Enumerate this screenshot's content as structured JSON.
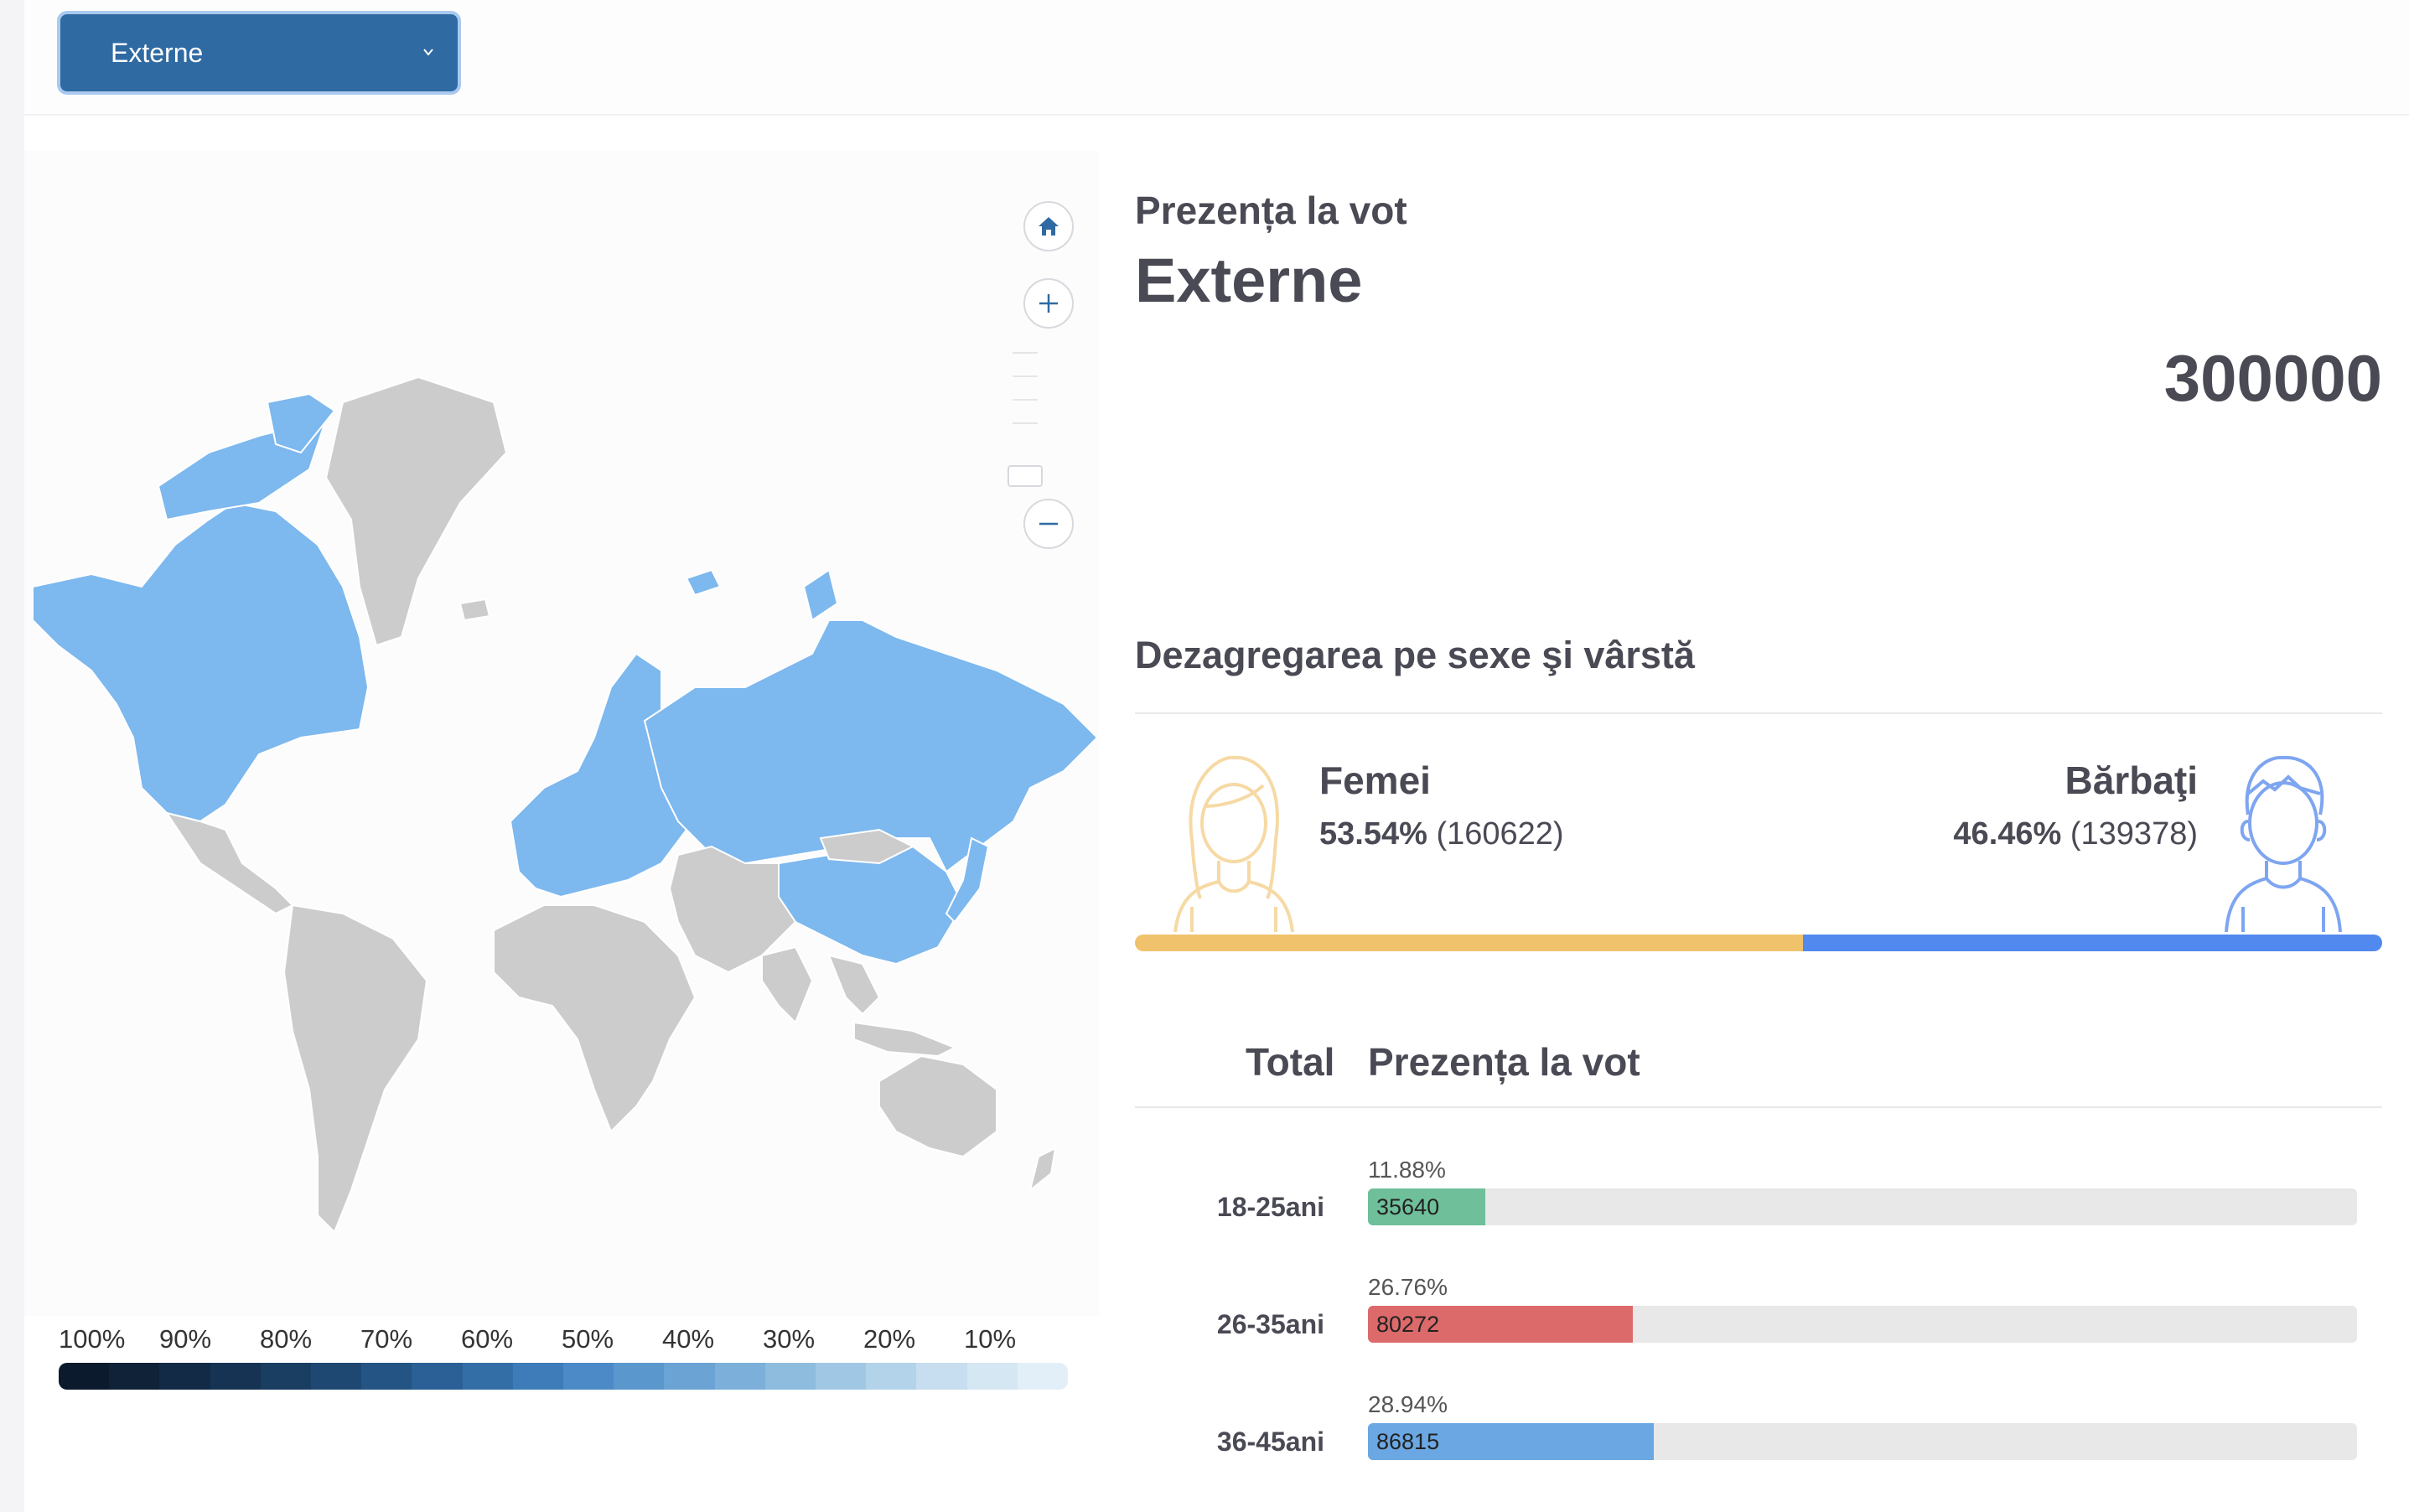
{
  "select": {
    "value": "Externe",
    "icon": "chevron-down-icon"
  },
  "map": {
    "controls": [
      "home-icon",
      "zoom-in-icon",
      "zoom-out-icon"
    ],
    "legend": {
      "labels": [
        "100%",
        "90%",
        "80%",
        "70%",
        "60%",
        "50%",
        "40%",
        "30%",
        "20%",
        "10%"
      ],
      "colors": [
        "#0b1a2c",
        "#0f2238",
        "#122a45",
        "#163353",
        "#1a3d62",
        "#1e4872",
        "#235483",
        "#2a6095",
        "#336ea7",
        "#3d7cb9",
        "#4b8ac6",
        "#5a97cd",
        "#6aa3d4",
        "#7cb0da",
        "#8ebcdf",
        "#a0c8e5",
        "#b3d3ea",
        "#c6deef",
        "#d6e7f4",
        "#e3eff8"
      ],
      "highlight_color": "#7db8ee",
      "neutral_color": "#cccccc"
    }
  },
  "turnout": {
    "label": "Prezența la vot",
    "region": "Externe",
    "total": "300000"
  },
  "gender": {
    "title": "Dezagregarea pe sexe şi vârstă",
    "female": {
      "label": "Femei",
      "pct": "53.54%",
      "count": "(160622)",
      "share": 53.54,
      "color": "#f0c26b",
      "icon": "woman-avatar-icon"
    },
    "male": {
      "label": "Bărbaţi",
      "pct": "46.46%",
      "count": "(139378)",
      "share": 46.46,
      "color": "#5189ee",
      "icon": "man-avatar-icon"
    }
  },
  "age_table": {
    "col_total": "Total",
    "col_turnout": "Prezența la vot",
    "rows": [
      {
        "label": "18-25ani",
        "pct": "11.88%",
        "value": "35640",
        "share": 11.88,
        "color": "#6fbf9a"
      },
      {
        "label": "26-35ani",
        "pct": "26.76%",
        "value": "80272",
        "share": 26.76,
        "color": "#dd6a6a"
      },
      {
        "label": "36-45ani",
        "pct": "28.94%",
        "value": "86815",
        "share": 28.94,
        "color": "#6aa7e3"
      }
    ]
  }
}
